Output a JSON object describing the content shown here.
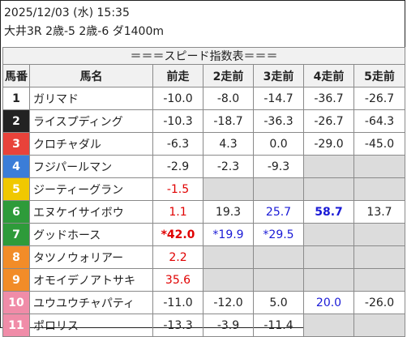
{
  "header": {
    "datetime": "2025/12/03 (水) 15:35",
    "race": "大井3R 2歳-5 2歳-6 ダ1400m"
  },
  "table": {
    "title": "＝＝＝スピード指数表＝＝＝",
    "columns": [
      "馬番",
      "馬名",
      "前走",
      "2走前",
      "3走前",
      "4走前",
      "5走前"
    ],
    "rows": [
      {
        "no": "1",
        "name": "ガリマド",
        "bg": "#ffffff",
        "light": true,
        "vals": [
          {
            "t": "-10.0"
          },
          {
            "t": "-8.0"
          },
          {
            "t": "-14.7"
          },
          {
            "t": "-36.7"
          },
          {
            "t": "-26.7"
          }
        ]
      },
      {
        "no": "2",
        "name": "ライスプディング",
        "bg": "#222222",
        "light": false,
        "vals": [
          {
            "t": "-10.3"
          },
          {
            "t": "-18.7"
          },
          {
            "t": "-36.3"
          },
          {
            "t": "-26.7"
          },
          {
            "t": "-64.3"
          }
        ]
      },
      {
        "no": "3",
        "name": "クロチャダル",
        "bg": "#e8423a",
        "light": false,
        "vals": [
          {
            "t": "-6.3"
          },
          {
            "t": "4.3"
          },
          {
            "t": "0.0"
          },
          {
            "t": "-29.0"
          },
          {
            "t": "-45.0"
          }
        ]
      },
      {
        "no": "4",
        "name": "フジパールマン",
        "bg": "#3b7dd8",
        "light": false,
        "vals": [
          {
            "t": "-2.9"
          },
          {
            "t": "-2.3"
          },
          {
            "t": "-9.3"
          },
          {
            "t": ""
          },
          {
            "t": ""
          }
        ]
      },
      {
        "no": "5",
        "name": "ジーティーグラン",
        "bg": "#f0c800",
        "light": false,
        "vals": [
          {
            "t": "-1.5",
            "c": "red"
          },
          {
            "t": ""
          },
          {
            "t": ""
          },
          {
            "t": ""
          },
          {
            "t": ""
          }
        ]
      },
      {
        "no": "6",
        "name": "エヌケイサイボウ",
        "bg": "#2e9b3a",
        "light": false,
        "vals": [
          {
            "t": "1.1",
            "c": "red"
          },
          {
            "t": "19.3"
          },
          {
            "t": "25.7",
            "c": "blue"
          },
          {
            "t": "58.7",
            "c": "blue",
            "b": true
          },
          {
            "t": "13.7"
          }
        ]
      },
      {
        "no": "7",
        "name": "グッドホース",
        "bg": "#2e9b3a",
        "light": false,
        "vals": [
          {
            "t": "*42.0",
            "c": "red",
            "b": true
          },
          {
            "t": "*19.9",
            "c": "blue"
          },
          {
            "t": "*29.5",
            "c": "blue"
          },
          {
            "t": ""
          },
          {
            "t": ""
          }
        ]
      },
      {
        "no": "8",
        "name": "タツノウォリアー",
        "bg": "#f28c28",
        "light": false,
        "vals": [
          {
            "t": "2.2",
            "c": "red"
          },
          {
            "t": ""
          },
          {
            "t": ""
          },
          {
            "t": ""
          },
          {
            "t": ""
          }
        ]
      },
      {
        "no": "9",
        "name": "オモイデノアトサキ",
        "bg": "#f28c28",
        "light": false,
        "vals": [
          {
            "t": "35.6",
            "c": "red"
          },
          {
            "t": ""
          },
          {
            "t": ""
          },
          {
            "t": ""
          },
          {
            "t": ""
          }
        ]
      },
      {
        "no": "10",
        "name": "ユウユウチャパティ",
        "bg": "#f08ca8",
        "light": false,
        "vals": [
          {
            "t": "-11.0"
          },
          {
            "t": "-12.0"
          },
          {
            "t": "5.0"
          },
          {
            "t": "20.0",
            "c": "blue"
          },
          {
            "t": "-26.0"
          }
        ]
      },
      {
        "no": "11",
        "name": "ポロリス",
        "bg": "#f08ca8",
        "light": false,
        "vals": [
          {
            "t": "-13.3"
          },
          {
            "t": "-3.9"
          },
          {
            "t": "-11.4"
          },
          {
            "t": ""
          },
          {
            "t": ""
          }
        ]
      }
    ]
  }
}
